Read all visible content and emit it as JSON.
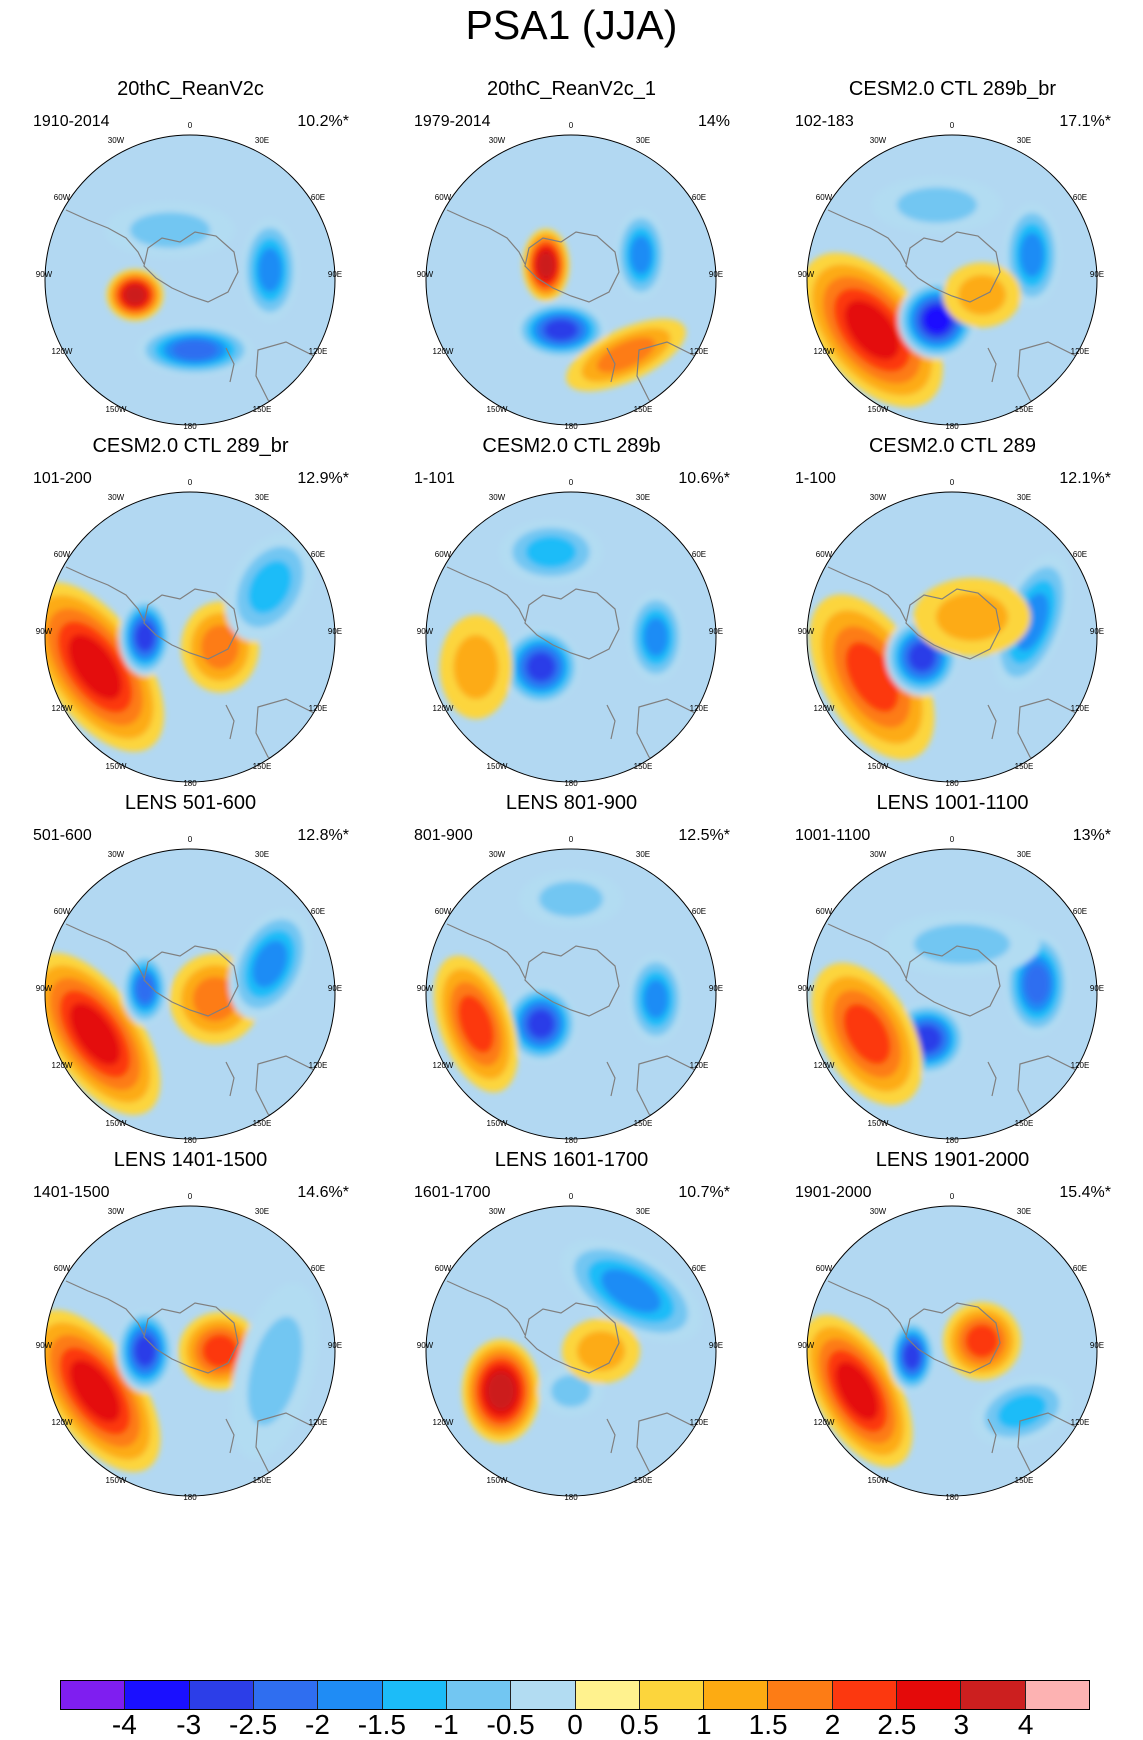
{
  "title": "PSA1 (JJA)",
  "labels": {
    "top": "0",
    "tr": "30E",
    "rt": "60E",
    "right": "90E",
    "rb": "120E",
    "br": "150E",
    "bottom": "180",
    "bl": "150W",
    "lb": "120W",
    "left": "90W",
    "lt": "60W",
    "tl": "30W"
  },
  "colors": {
    "ocean": "#b2d8f2",
    "land": "#fff28e",
    "coast": "#7f7f7f",
    "scale": [
      "#7f1ef0",
      "#1a10ff",
      "#2c3ee8",
      "#2f6ef0",
      "#1f8cf5",
      "#1cbcf8",
      "#72c6f2",
      "#b2dcf2",
      "#fff28e",
      "#fcd53c",
      "#fdab12",
      "#fd7c15",
      "#fc380f",
      "#e40a0a",
      "#cc1f1f",
      "#fdb2b2"
    ]
  },
  "colorbar": {
    "ticks": [
      "-4",
      "-3",
      "-2.5",
      "-2",
      "-1.5",
      "-1",
      "-0.5",
      "0",
      "0.5",
      "1",
      "1.5",
      "2",
      "2.5",
      "3",
      "4"
    ]
  },
  "panels": [
    {
      "title": "20thC_ReanV2c",
      "period": "1910-2014",
      "pct": "10.2%*",
      "blobs": [
        {
          "dx": -55,
          "dy": 15,
          "rx": 22,
          "ry": 20,
          "rot": 0,
          "v": 3
        },
        {
          "dx": 5,
          "dy": 70,
          "rx": 45,
          "ry": 20,
          "rot": 0,
          "v": -2.5
        },
        {
          "dx": 80,
          "dy": -10,
          "rx": 22,
          "ry": 40,
          "rot": 0,
          "v": -2
        },
        {
          "dx": -20,
          "dy": -50,
          "rx": 50,
          "ry": 22,
          "rot": 0,
          "v": -1
        }
      ]
    },
    {
      "title": "20thC_ReanV2c_1",
      "period": "1979-2014",
      "pct": "14%",
      "blobs": [
        {
          "dx": -25,
          "dy": -15,
          "rx": 18,
          "ry": 28,
          "rot": 0,
          "v": 3
        },
        {
          "dx": -10,
          "dy": 50,
          "rx": 35,
          "ry": 22,
          "rot": 0,
          "v": -3
        },
        {
          "dx": 70,
          "dy": -25,
          "rx": 20,
          "ry": 35,
          "rot": 0,
          "v": -2
        },
        {
          "dx": 55,
          "dy": 75,
          "rx": 50,
          "ry": 20,
          "rot": -25,
          "v": 1.5
        }
      ]
    },
    {
      "title": "CESM2.0 CTL 289b_br",
      "period": "102-183",
      "pct": "17.1%*",
      "blobs": [
        {
          "dx": -80,
          "dy": 50,
          "rx": 40,
          "ry": 70,
          "rot": -40,
          "v": 2.5
        },
        {
          "dx": -15,
          "dy": 40,
          "rx": 30,
          "ry": 30,
          "rot": 0,
          "v": -4
        },
        {
          "dx": -15,
          "dy": -75,
          "rx": 50,
          "ry": 22,
          "rot": 0,
          "v": -1
        },
        {
          "dx": 80,
          "dy": -25,
          "rx": 22,
          "ry": 40,
          "rot": 0,
          "v": -2
        },
        {
          "dx": 30,
          "dy": 15,
          "rx": 30,
          "ry": 25,
          "rot": 0,
          "v": 1
        }
      ]
    },
    {
      "title": "CESM2.0 CTL 289_br",
      "period": "101-200",
      "pct": "12.9%*",
      "blobs": [
        {
          "dx": -95,
          "dy": 30,
          "rx": 38,
          "ry": 75,
          "rot": -35,
          "v": 2.5
        },
        {
          "dx": -45,
          "dy": 0,
          "rx": 20,
          "ry": 30,
          "rot": 0,
          "v": -3
        },
        {
          "dx": 30,
          "dy": 10,
          "rx": 30,
          "ry": 35,
          "rot": 0,
          "v": 1.5
        },
        {
          "dx": 80,
          "dy": -50,
          "rx": 30,
          "ry": 45,
          "rot": 30,
          "v": -1.5
        }
      ]
    },
    {
      "title": "CESM2.0 CTL 289b",
      "period": "1-101",
      "pct": "10.6%*",
      "blobs": [
        {
          "dx": -30,
          "dy": 30,
          "rx": 30,
          "ry": 30,
          "rot": 0,
          "v": -3
        },
        {
          "dx": -20,
          "dy": -85,
          "rx": 40,
          "ry": 25,
          "rot": 0,
          "v": -1.5
        },
        {
          "dx": 85,
          "dy": 0,
          "rx": 22,
          "ry": 35,
          "rot": 0,
          "v": -2
        },
        {
          "dx": -95,
          "dy": 30,
          "rx": 28,
          "ry": 40,
          "rot": 0,
          "v": 1
        }
      ]
    },
    {
      "title": "CESM2.0 CTL 289",
      "period": "1-100",
      "pct": "12.1%*",
      "blobs": [
        {
          "dx": -80,
          "dy": 40,
          "rx": 38,
          "ry": 70,
          "rot": -30,
          "v": 2
        },
        {
          "dx": -30,
          "dy": 20,
          "rx": 28,
          "ry": 30,
          "rot": 0,
          "v": -3
        },
        {
          "dx": 80,
          "dy": -15,
          "rx": 25,
          "ry": 55,
          "rot": 20,
          "v": -2
        },
        {
          "dx": 20,
          "dy": -20,
          "rx": 45,
          "ry": 30,
          "rot": 0,
          "v": 1
        }
      ]
    },
    {
      "title": "LENS 501-600",
      "period": "501-600",
      "pct": "12.8%*",
      "blobs": [
        {
          "dx": -95,
          "dy": 40,
          "rx": 35,
          "ry": 72,
          "rot": -35,
          "v": 2.5
        },
        {
          "dx": -45,
          "dy": -5,
          "rx": 18,
          "ry": 28,
          "rot": 0,
          "v": -2.5
        },
        {
          "dx": 25,
          "dy": 5,
          "rx": 35,
          "ry": 35,
          "rot": 0,
          "v": 1.5
        },
        {
          "dx": 80,
          "dy": -30,
          "rx": 28,
          "ry": 45,
          "rot": 25,
          "v": -2
        }
      ]
    },
    {
      "title": "LENS 801-900",
      "period": "801-900",
      "pct": "12.5%*",
      "blobs": [
        {
          "dx": -30,
          "dy": 30,
          "rx": 28,
          "ry": 30,
          "rot": 0,
          "v": -3
        },
        {
          "dx": -95,
          "dy": 30,
          "rx": 28,
          "ry": 55,
          "rot": -20,
          "v": 2
        },
        {
          "dx": 85,
          "dy": 5,
          "rx": 22,
          "ry": 35,
          "rot": 0,
          "v": -2
        },
        {
          "dx": 0,
          "dy": -95,
          "rx": 40,
          "ry": 22,
          "rot": 0,
          "v": -1
        }
      ]
    },
    {
      "title": "LENS 1001-1100",
      "period": "1001-1100",
      "pct": "13%*",
      "blobs": [
        {
          "dx": -25,
          "dy": 45,
          "rx": 30,
          "ry": 28,
          "rot": 0,
          "v": -3
        },
        {
          "dx": 85,
          "dy": -10,
          "rx": 25,
          "ry": 40,
          "rot": 0,
          "v": -2.5
        },
        {
          "dx": -85,
          "dy": 40,
          "rx": 35,
          "ry": 60,
          "rot": -30,
          "v": 2
        },
        {
          "dx": 10,
          "dy": -50,
          "rx": 60,
          "ry": 25,
          "rot": 0,
          "v": -1
        }
      ]
    },
    {
      "title": "LENS 1401-1500",
      "period": "1401-1500",
      "pct": "14.6%*",
      "blobs": [
        {
          "dx": -95,
          "dy": 40,
          "rx": 35,
          "ry": 72,
          "rot": -35,
          "v": 2.5
        },
        {
          "dx": -45,
          "dy": 0,
          "rx": 22,
          "ry": 32,
          "rot": 0,
          "v": -3
        },
        {
          "dx": 30,
          "dy": 0,
          "rx": 32,
          "ry": 30,
          "rot": 0,
          "v": 2
        },
        {
          "dx": 85,
          "dy": 20,
          "rx": 30,
          "ry": 70,
          "rot": 15,
          "v": -1
        }
      ]
    },
    {
      "title": "LENS 1601-1700",
      "period": "1601-1700",
      "pct": "10.7%*",
      "blobs": [
        {
          "dx": -70,
          "dy": 40,
          "rx": 30,
          "ry": 40,
          "rot": 0,
          "v": 3
        },
        {
          "dx": 60,
          "dy": -60,
          "rx": 60,
          "ry": 30,
          "rot": 30,
          "v": -2
        },
        {
          "dx": 0,
          "dy": 40,
          "rx": 25,
          "ry": 20,
          "rot": 0,
          "v": -1
        },
        {
          "dx": 30,
          "dy": 0,
          "rx": 30,
          "ry": 25,
          "rot": 0,
          "v": 1
        }
      ]
    },
    {
      "title": "LENS 1901-2000",
      "period": "1901-2000",
      "pct": "15.4%*",
      "blobs": [
        {
          "dx": -95,
          "dy": 40,
          "rx": 32,
          "ry": 65,
          "rot": -30,
          "v": 2.5
        },
        {
          "dx": -40,
          "dy": 5,
          "rx": 18,
          "ry": 28,
          "rot": 0,
          "v": -3
        },
        {
          "dx": 30,
          "dy": -10,
          "rx": 30,
          "ry": 30,
          "rot": 0,
          "v": 2
        },
        {
          "dx": 70,
          "dy": 60,
          "rx": 40,
          "ry": 25,
          "rot": -20,
          "v": -1.5
        }
      ]
    }
  ]
}
